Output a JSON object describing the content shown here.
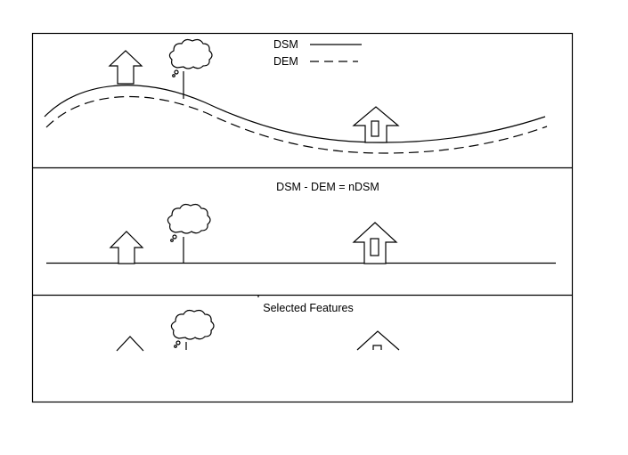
{
  "legend": {
    "dsm_label": "DSM",
    "dem_label": "DEM"
  },
  "panels": [
    {
      "title": ""
    },
    {
      "title": "DSM - DEM = nDSM"
    },
    {
      "title": "Selected Features"
    }
  ]
}
